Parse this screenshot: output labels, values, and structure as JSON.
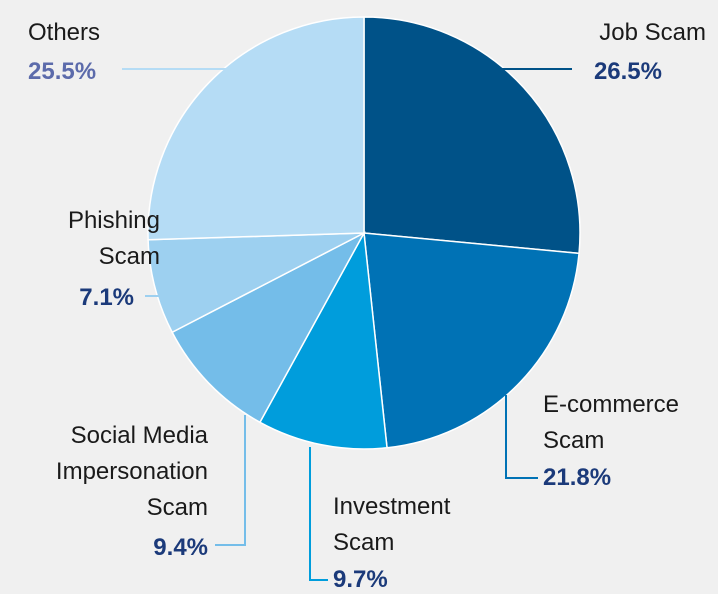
{
  "chart_data": {
    "type": "pie",
    "categories": [
      "Job Scam",
      "E-commerce\nScam",
      "Investment\nScam",
      "Social Media\nImpersonation\nScam",
      "Phishing\nScam",
      "Others"
    ],
    "values": [
      26.5,
      21.8,
      9.7,
      9.4,
      7.1,
      25.5
    ],
    "value_labels": [
      "26.5%",
      "21.8%",
      "9.7%",
      "9.4%",
      "7.1%",
      "25.5%"
    ],
    "colors": [
      "#005288",
      "#0072b5",
      "#009ddc",
      "#74bde9",
      "#9dd0f0",
      "#b5dcf5"
    ]
  }
}
